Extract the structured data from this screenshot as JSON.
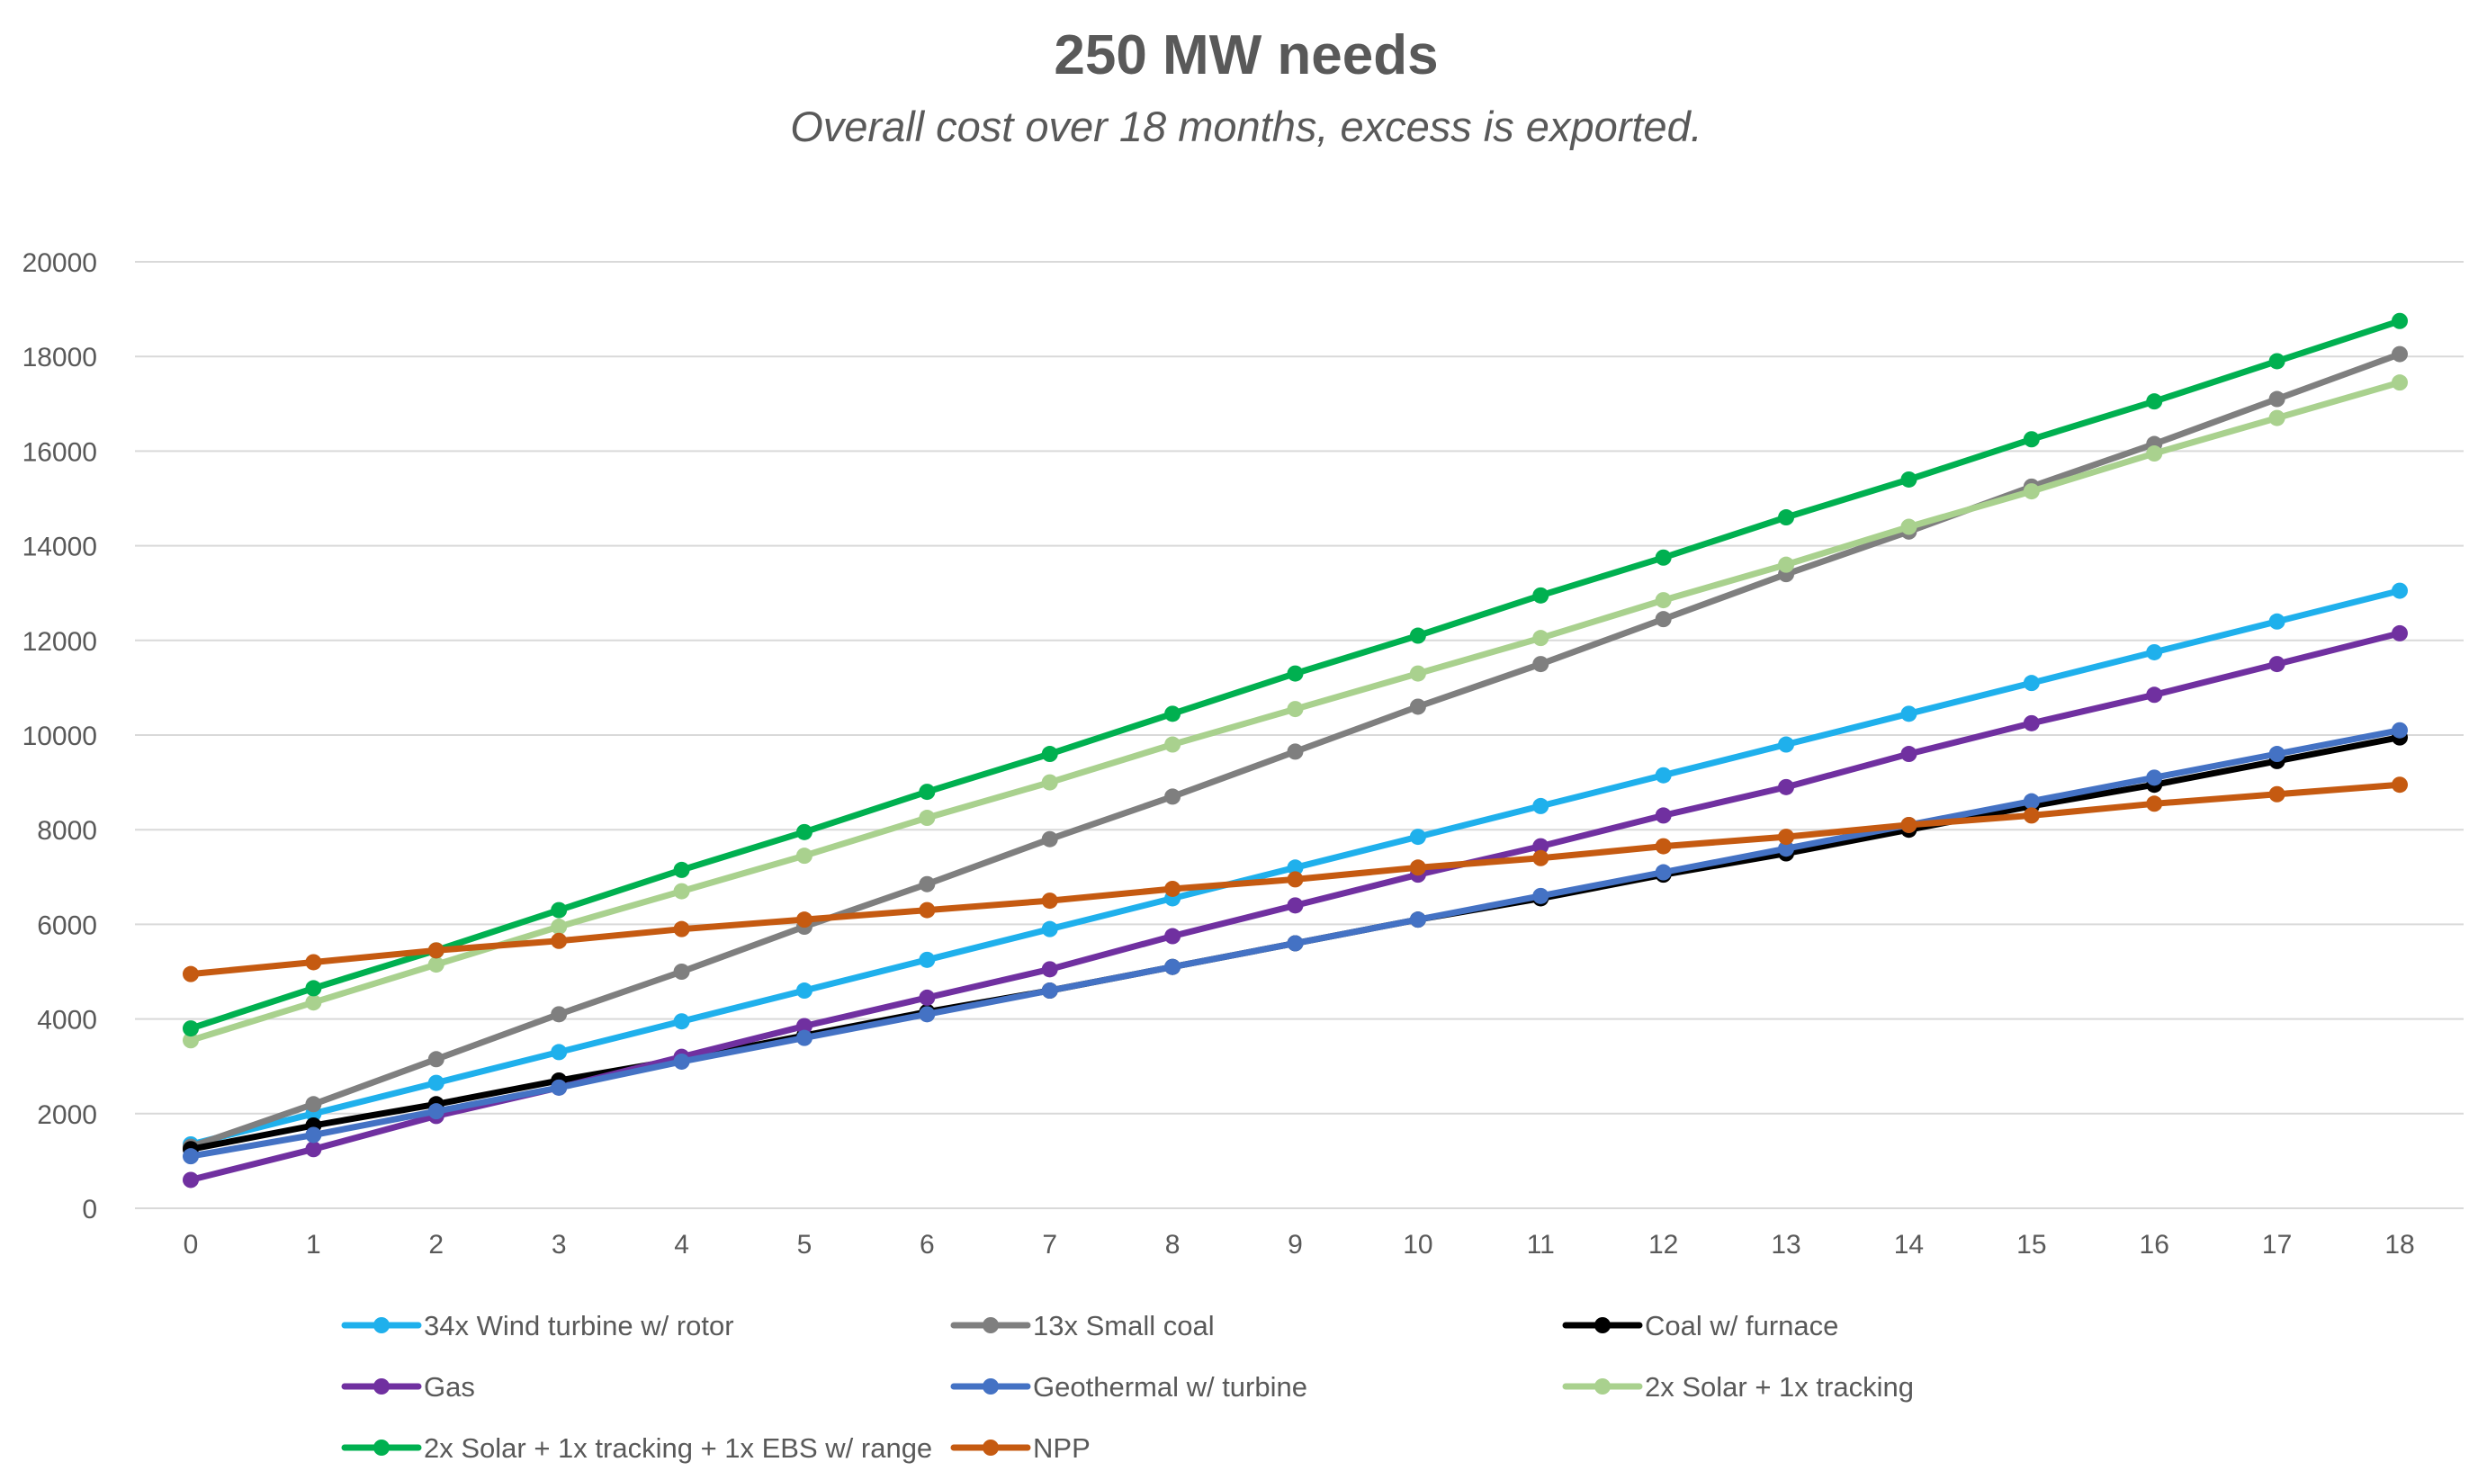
{
  "chart_data": {
    "type": "line",
    "title": "250 MW needs",
    "subtitle": "Overall cost over 18 months, excess is exported.",
    "xlabel": "",
    "ylabel": "",
    "x": [
      0,
      1,
      2,
      3,
      4,
      5,
      6,
      7,
      8,
      9,
      10,
      11,
      12,
      13,
      14,
      15,
      16,
      17,
      18
    ],
    "x_tick_labels": [
      "0",
      "1",
      "2",
      "3",
      "4",
      "5",
      "6",
      "7",
      "8",
      "9",
      "10",
      "11",
      "12",
      "13",
      "14",
      "15",
      "16",
      "17",
      "18"
    ],
    "ylim": [
      0,
      20000
    ],
    "y_ticks": [
      0,
      2000,
      4000,
      6000,
      8000,
      10000,
      12000,
      14000,
      16000,
      18000,
      20000
    ],
    "y_tick_labels": [
      "0",
      "2000",
      "4000",
      "6000",
      "8000",
      "10000",
      "12000",
      "14000",
      "16000",
      "18000",
      "20000"
    ],
    "grid": true,
    "legend_position": "bottom",
    "series": [
      {
        "name": "34x Wind turbine w/ rotor",
        "color": "#1FB0EC",
        "values": [
          1350,
          2000,
          2650,
          3300,
          3950,
          4600,
          5250,
          5900,
          6550,
          7200,
          7850,
          8500,
          9150,
          9800,
          10450,
          11100,
          11750,
          12400,
          13050
        ]
      },
      {
        "name": "13x Small coal",
        "color": "#7F7F7F",
        "values": [
          1300,
          2200,
          3150,
          4100,
          5000,
          5950,
          6850,
          7800,
          8700,
          9650,
          10600,
          11500,
          12450,
          13400,
          14300,
          15250,
          16150,
          17100,
          18050
        ]
      },
      {
        "name": "Coal w/ furnace",
        "color": "#000000",
        "values": [
          1250,
          1750,
          2200,
          2700,
          3150,
          3650,
          4150,
          4600,
          5100,
          5600,
          6100,
          6550,
          7050,
          7500,
          8000,
          8500,
          8950,
          9450,
          9950
        ]
      },
      {
        "name": "Gas",
        "color": "#7030A0",
        "values": [
          600,
          1250,
          1950,
          2550,
          3200,
          3850,
          4450,
          5050,
          5750,
          6400,
          7050,
          7650,
          8300,
          8900,
          9600,
          10250,
          10850,
          11500,
          12150
        ]
      },
      {
        "name": "Geothermal w/ turbine",
        "color": "#4472C4",
        "values": [
          1100,
          1550,
          2050,
          2550,
          3100,
          3600,
          4100,
          4600,
          5100,
          5600,
          6100,
          6600,
          7100,
          7600,
          8100,
          8600,
          9100,
          9600,
          10100
        ]
      },
      {
        "name": "2x Solar + 1x tracking",
        "color": "#A9D18E",
        "values": [
          3550,
          4350,
          5150,
          5950,
          6700,
          7450,
          8250,
          9000,
          9800,
          10550,
          11300,
          12050,
          12850,
          13600,
          14400,
          15150,
          15950,
          16700,
          17450
        ]
      },
      {
        "name": "2x Solar + 1x tracking + 1x EBS w/ range",
        "color": "#00B050",
        "values": [
          3800,
          4650,
          5450,
          6300,
          7150,
          7950,
          8800,
          9600,
          10450,
          11300,
          12100,
          12950,
          13750,
          14600,
          15400,
          16250,
          17050,
          17900,
          18750
        ]
      },
      {
        "name": "NPP",
        "color": "#C55A11",
        "values": [
          4950,
          5200,
          5450,
          5650,
          5900,
          6100,
          6300,
          6500,
          6750,
          6950,
          7200,
          7400,
          7650,
          7850,
          8100,
          8300,
          8550,
          8750,
          8950
        ]
      }
    ]
  }
}
